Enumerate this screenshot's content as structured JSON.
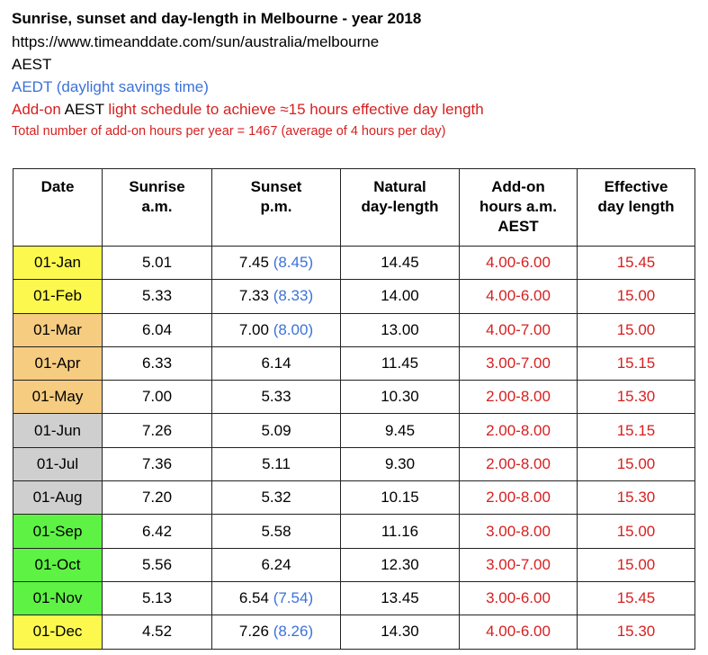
{
  "header": {
    "title": "Sunrise, sunset and day-length in Melbourne - year 2018",
    "url": "https://www.timeanddate.com/sun/australia/melbourne",
    "aest": "AEST",
    "aedt": "AEDT (daylight savings time)",
    "addon_prefix": "Add-on ",
    "addon_aest": "AEST",
    "addon_suffix": " light schedule to achieve ≈15 hours effective day length",
    "total": "Total number of add-on hours per year = 1467 (average of 4 hours per day)"
  },
  "colors": {
    "blue": "#3b72d8",
    "red": "#d72020",
    "yellow": "#fdf84e",
    "orange": "#f6cc80",
    "grey": "#cfcfcf",
    "green": "#5ef244"
  },
  "table": {
    "headers": {
      "date": "Date",
      "sunrise_1": "Sunrise",
      "sunrise_2": "a.m.",
      "sunset_1": "Sunset",
      "sunset_2": "p.m.",
      "natural_1": "Natural",
      "natural_2": "day-length",
      "addon_1": "Add-on",
      "addon_2": "hours a.m.",
      "addon_3": "AEST",
      "effective_1": "Effective",
      "effective_2": "day length"
    },
    "rows": [
      {
        "date": "01-Jan",
        "sunrise": "5.01",
        "sunset": "7.45",
        "sunset_dst": " (8.45)",
        "natural": "14.45",
        "addon": "4.00-6.00",
        "effective": "15.45",
        "season": "yellow"
      },
      {
        "date": "01-Feb",
        "sunrise": "5.33",
        "sunset": "7.33",
        "sunset_dst": " (8.33)",
        "natural": "14.00",
        "addon": "4.00-6.00",
        "effective": "15.00",
        "season": "yellow"
      },
      {
        "date": "01-Mar",
        "sunrise": "6.04",
        "sunset": "7.00",
        "sunset_dst": " (8.00)",
        "natural": "13.00",
        "addon": "4.00-7.00",
        "effective": "15.00",
        "season": "orange"
      },
      {
        "date": "01-Apr",
        "sunrise": "6.33",
        "sunset": "6.14",
        "sunset_dst": "",
        "natural": "11.45",
        "addon": "3.00-7.00",
        "effective": "15.15",
        "season": "orange"
      },
      {
        "date": "01-May",
        "sunrise": "7.00",
        "sunset": "5.33",
        "sunset_dst": "",
        "natural": "10.30",
        "addon": "2.00-8.00",
        "effective": "15.30",
        "season": "orange"
      },
      {
        "date": "01-Jun",
        "sunrise": "7.26",
        "sunset": "5.09",
        "sunset_dst": "",
        "natural": "9.45",
        "addon": "2.00-8.00",
        "effective": "15.15",
        "season": "grey"
      },
      {
        "date": "01-Jul",
        "sunrise": "7.36",
        "sunset": "5.11",
        "sunset_dst": "",
        "natural": "9.30",
        "addon": "2.00-8.00",
        "effective": "15.00",
        "season": "grey"
      },
      {
        "date": "01-Aug",
        "sunrise": "7.20",
        "sunset": "5.32",
        "sunset_dst": "",
        "natural": "10.15",
        "addon": "2.00-8.00",
        "effective": "15.30",
        "season": "grey"
      },
      {
        "date": "01-Sep",
        "sunrise": "6.42",
        "sunset": "5.58",
        "sunset_dst": "",
        "natural": "11.16",
        "addon": "3.00-8.00",
        "effective": "15.00",
        "season": "green"
      },
      {
        "date": "01-Oct",
        "sunrise": "5.56",
        "sunset": "6.24",
        "sunset_dst": "",
        "natural": "12.30",
        "addon": "3.00-7.00",
        "effective": "15.00",
        "season": "green"
      },
      {
        "date": "01-Nov",
        "sunrise": "5.13",
        "sunset": "6.54",
        "sunset_dst": " (7.54)",
        "natural": "13.45",
        "addon": "3.00-6.00",
        "effective": "15.45",
        "season": "green"
      },
      {
        "date": "01-Dec",
        "sunrise": "4.52",
        "sunset": "7.26",
        "sunset_dst": " (8.26)",
        "natural": "14.30",
        "addon": "4.00-6.00",
        "effective": "15.30",
        "season": "yellow"
      }
    ]
  }
}
